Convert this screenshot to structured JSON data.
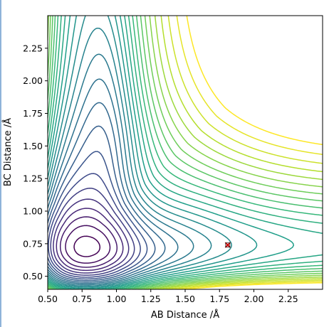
{
  "chart_data": {
    "type": "contour",
    "title": "",
    "xlabel": "AB Distance /Å",
    "ylabel": "BC Distance /Å",
    "xlim": [
      0.5,
      2.5
    ],
    "ylim": [
      0.4,
      2.5
    ],
    "xticks": [
      "0.50",
      "0.75",
      "1.00",
      "1.25",
      "1.50",
      "1.75",
      "2.00",
      "2.25"
    ],
    "yticks": [
      "0.50",
      "0.75",
      "1.00",
      "1.25",
      "1.50",
      "1.75",
      "2.00",
      "2.25"
    ],
    "colormap": "viridis",
    "levels": 28,
    "valley_floor_distance": 0.74,
    "marker": {
      "x": 1.81,
      "y": 0.74,
      "symbol": "x",
      "color": "#cc0000"
    },
    "grid": false
  }
}
